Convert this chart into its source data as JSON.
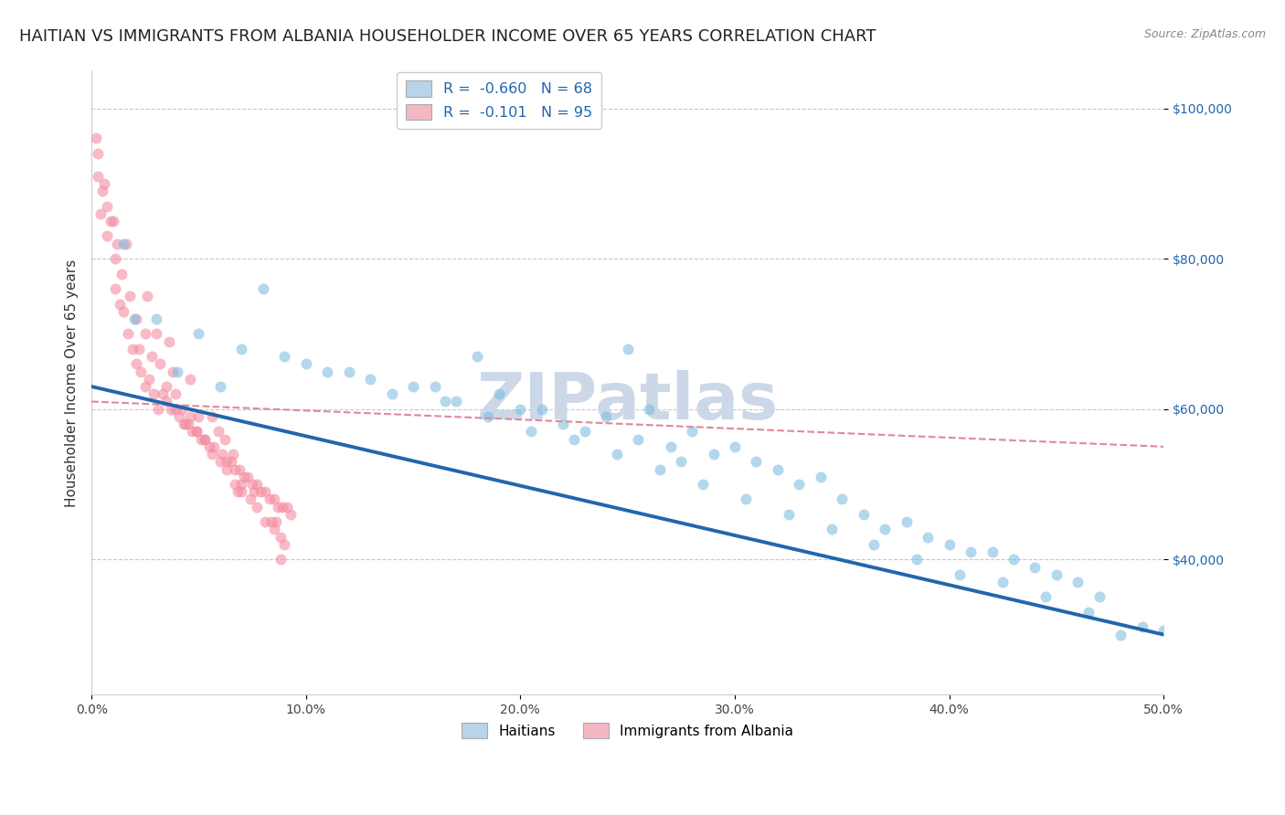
{
  "title": "HAITIAN VS IMMIGRANTS FROM ALBANIA HOUSEHOLDER INCOME OVER 65 YEARS CORRELATION CHART",
  "source": "Source: ZipAtlas.com",
  "ylabel": "Householder Income Over 65 years",
  "xlim": [
    0.0,
    0.5
  ],
  "ylim": [
    22000,
    105000
  ],
  "yticks": [
    40000,
    60000,
    80000,
    100000
  ],
  "ytick_labels": [
    "$40,000",
    "$60,000",
    "$80,000",
    "$100,000"
  ],
  "xticks": [
    0.0,
    0.1,
    0.2,
    0.3,
    0.4,
    0.5
  ],
  "xtick_labels": [
    "0.0%",
    "10.0%",
    "20.0%",
    "30.0%",
    "40.0%",
    "50.0%"
  ],
  "legend_entries": [
    {
      "label": "R =  -0.660   N = 68",
      "color": "#b8d4ea"
    },
    {
      "label": "R =  -0.101   N = 95",
      "color": "#f4b8c4"
    }
  ],
  "legend_bottom": [
    {
      "label": "Haitians",
      "color": "#b8d4ea"
    },
    {
      "label": "Immigrants from Albania",
      "color": "#f4b8c4"
    }
  ],
  "watermark": "ZIPatlas",
  "blue_scatter_x": [
    0.015,
    0.25,
    0.08,
    0.12,
    0.18,
    0.1,
    0.14,
    0.16,
    0.2,
    0.22,
    0.19,
    0.21,
    0.23,
    0.17,
    0.15,
    0.26,
    0.28,
    0.3,
    0.24,
    0.27,
    0.32,
    0.29,
    0.31,
    0.33,
    0.35,
    0.37,
    0.34,
    0.36,
    0.38,
    0.4,
    0.42,
    0.44,
    0.46,
    0.48,
    0.5,
    0.13,
    0.11,
    0.09,
    0.07,
    0.05,
    0.03,
    0.06,
    0.04,
    0.39,
    0.41,
    0.43,
    0.45,
    0.47,
    0.49,
    0.02,
    0.165,
    0.185,
    0.205,
    0.225,
    0.245,
    0.265,
    0.285,
    0.305,
    0.325,
    0.345,
    0.365,
    0.385,
    0.405,
    0.425,
    0.445,
    0.465,
    0.255,
    0.275
  ],
  "blue_scatter_y": [
    82000,
    68000,
    76000,
    65000,
    67000,
    66000,
    62000,
    63000,
    60000,
    58000,
    62000,
    60000,
    57000,
    61000,
    63000,
    60000,
    57000,
    55000,
    59000,
    55000,
    52000,
    54000,
    53000,
    50000,
    48000,
    44000,
    51000,
    46000,
    45000,
    42000,
    41000,
    39000,
    37000,
    30000,
    30500,
    64000,
    65000,
    67000,
    68000,
    70000,
    72000,
    63000,
    65000,
    43000,
    41000,
    40000,
    38000,
    35000,
    31000,
    72000,
    61000,
    59000,
    57000,
    56000,
    54000,
    52000,
    50000,
    48000,
    46000,
    44000,
    42000,
    40000,
    38000,
    37000,
    35000,
    33000,
    56000,
    53000
  ],
  "pink_scatter_x": [
    0.003,
    0.005,
    0.007,
    0.009,
    0.011,
    0.013,
    0.015,
    0.017,
    0.019,
    0.021,
    0.023,
    0.025,
    0.027,
    0.029,
    0.031,
    0.033,
    0.035,
    0.037,
    0.039,
    0.041,
    0.043,
    0.045,
    0.047,
    0.049,
    0.051,
    0.053,
    0.055,
    0.057,
    0.059,
    0.061,
    0.063,
    0.065,
    0.067,
    0.069,
    0.071,
    0.073,
    0.075,
    0.077,
    0.079,
    0.081,
    0.083,
    0.085,
    0.087,
    0.089,
    0.091,
    0.093,
    0.007,
    0.014,
    0.021,
    0.028,
    0.035,
    0.042,
    0.049,
    0.056,
    0.063,
    0.07,
    0.077,
    0.084,
    0.004,
    0.011,
    0.018,
    0.025,
    0.032,
    0.039,
    0.046,
    0.053,
    0.06,
    0.067,
    0.074,
    0.081,
    0.088,
    0.006,
    0.016,
    0.026,
    0.036,
    0.046,
    0.056,
    0.066,
    0.076,
    0.086,
    0.01,
    0.03,
    0.05,
    0.07,
    0.09,
    0.012,
    0.038,
    0.062,
    0.085,
    0.003,
    0.022,
    0.044,
    0.068,
    0.088,
    0.002
  ],
  "pink_scatter_y": [
    94000,
    89000,
    87000,
    85000,
    76000,
    74000,
    73000,
    70000,
    68000,
    66000,
    65000,
    63000,
    64000,
    62000,
    60000,
    62000,
    61000,
    60000,
    60000,
    59000,
    58000,
    58000,
    57000,
    57000,
    56000,
    56000,
    55000,
    55000,
    57000,
    54000,
    53000,
    53000,
    52000,
    52000,
    51000,
    51000,
    50000,
    50000,
    49000,
    49000,
    48000,
    48000,
    47000,
    47000,
    47000,
    46000,
    83000,
    78000,
    72000,
    67000,
    63000,
    60000,
    57000,
    54000,
    52000,
    49000,
    47000,
    45000,
    86000,
    80000,
    75000,
    70000,
    66000,
    62000,
    59000,
    56000,
    53000,
    50000,
    48000,
    45000,
    43000,
    90000,
    82000,
    75000,
    69000,
    64000,
    59000,
    54000,
    49000,
    45000,
    85000,
    70000,
    59000,
    50000,
    42000,
    82000,
    65000,
    56000,
    44000,
    91000,
    68000,
    58000,
    49000,
    40000,
    96000
  ],
  "blue_line_x": [
    0.0,
    0.5
  ],
  "blue_line_y": [
    63000,
    30000
  ],
  "pink_line_x": [
    0.0,
    0.5
  ],
  "pink_line_y": [
    61000,
    55000
  ],
  "scatter_size": 75,
  "scatter_alpha": 0.6,
  "blue_color": "#7fbee0",
  "pink_color": "#f48ca0",
  "line_blue": "#2166ac",
  "line_pink": "#e08898",
  "background_color": "#ffffff",
  "grid_color": "#c8c8c8",
  "title_fontsize": 13,
  "axis_fontsize": 11,
  "tick_fontsize": 10,
  "watermark_color": "#ccd8e8",
  "watermark_fontsize": 52
}
